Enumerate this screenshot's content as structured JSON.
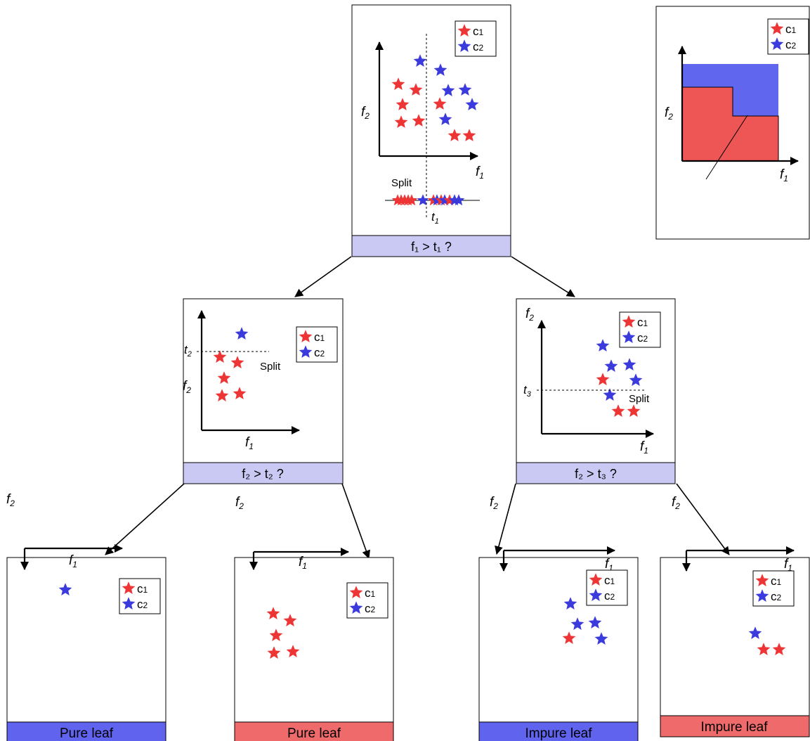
{
  "colors": {
    "red": "#ee3535",
    "blue": "#3b3bdd",
    "node_label_bg": "#c9c9f4",
    "pure_blue": "#5f63ee",
    "pure_red": "#ef6a6a",
    "region_red": "#ee5555",
    "region_blue": "#6066ee"
  },
  "legend": {
    "c1": "c",
    "c1_sub": "1",
    "c2": "c",
    "c2_sub": "2"
  },
  "axes": {
    "f1": "f",
    "f1_sub": "1",
    "f2": "f",
    "f2_sub": "2"
  },
  "split_word": "Split",
  "thresholds": {
    "t1": "t",
    "t1_sub": "1",
    "t2": "t",
    "t2_sub": "2",
    "t3": "t",
    "t3_sub": "3"
  },
  "nodes": {
    "root": {
      "condition": "f₁ > t₁ ?"
    },
    "left": {
      "condition": "f₂ > t₂ ?"
    },
    "right": {
      "condition": "f₂ > t₃ ?"
    }
  },
  "leaves": [
    {
      "label": "Pure leaf",
      "class": "blue"
    },
    {
      "label": "Pure leaf",
      "class": "red"
    },
    {
      "label": "Impure leaf",
      "class": "blue"
    },
    {
      "label": "Impure leaf",
      "class": "red"
    }
  ]
}
